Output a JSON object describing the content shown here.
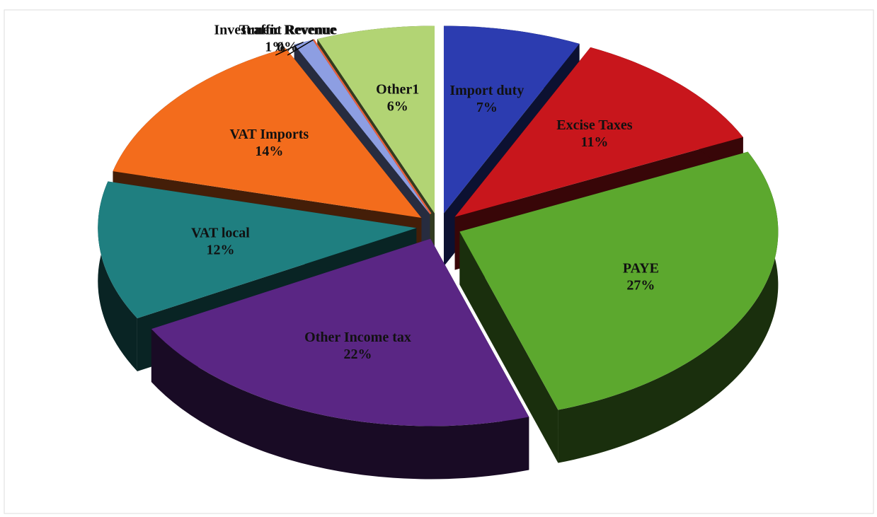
{
  "chart_data": {
    "type": "pie",
    "categories": [
      "Import duty",
      "Excise Taxes",
      "PAYE",
      "Other Income tax",
      "VAT local",
      "VAT Imports",
      "Investment Revenue",
      "Traffic Revenue",
      "Other1"
    ],
    "values": [
      7,
      11,
      27,
      22,
      12,
      14,
      1,
      0,
      6
    ],
    "value_labels": [
      "7%",
      "11%",
      "27%",
      "22%",
      "12%",
      "14%",
      "1%",
      "0%",
      "6%"
    ],
    "colors": [
      "#2c3cb0",
      "#c8161c",
      "#5ca82e",
      "#5a2684",
      "#1f7f80",
      "#f36c1c",
      "#8d9ee2",
      "#e8603c",
      "#b2d474"
    ]
  }
}
